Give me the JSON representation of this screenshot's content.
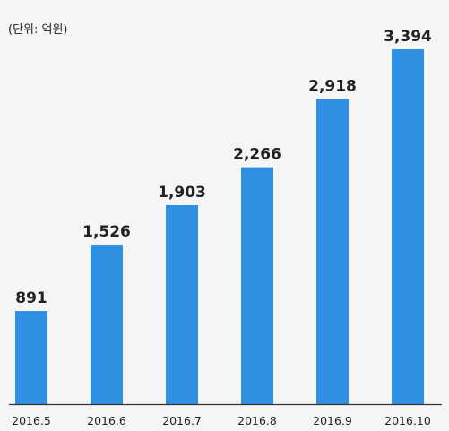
{
  "unit_label": "(단위: 억원)",
  "colors": {
    "bar": "#2f8fe3",
    "axis": "#333333",
    "text": "#222222",
    "background": "#f5f5f5"
  },
  "chart_data": {
    "type": "bar",
    "categories": [
      "2016.5",
      "2016.6",
      "2016.7",
      "2016.8",
      "2016.9",
      "2016.10"
    ],
    "values": [
      891,
      1526,
      1903,
      2266,
      2918,
      3394
    ],
    "value_labels": [
      "891",
      "1,526",
      "1,903",
      "2,266",
      "2,918",
      "3,394"
    ],
    "ylim": [
      0,
      3600
    ],
    "grid": false,
    "legend": "none"
  }
}
